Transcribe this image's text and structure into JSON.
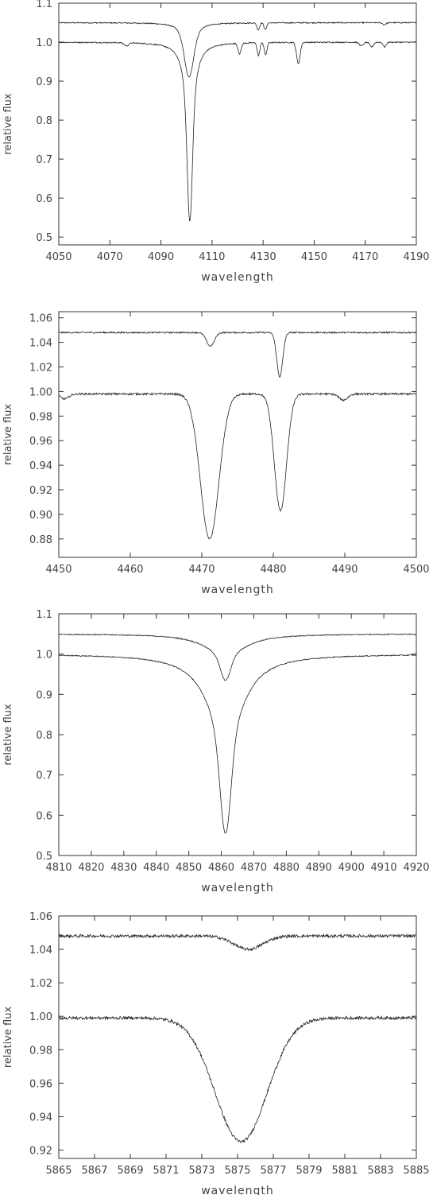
{
  "chart_data": [
    {
      "type": "line",
      "xlabel": "wavelength",
      "ylabel": "relative flux",
      "xlim": [
        4050,
        4190
      ],
      "ylim": [
        0.48,
        1.1
      ],
      "xticks": [
        4050,
        4070,
        4090,
        4110,
        4130,
        4150,
        4170,
        4190
      ],
      "yticks": [
        0.5,
        0.6,
        0.7,
        0.8,
        0.9,
        1.0,
        1.1
      ],
      "ytick_labels": [
        "0.5",
        "0.6",
        "0.7",
        "0.8",
        "0.9",
        "1.0",
        "1.1"
      ],
      "grid": false,
      "series": [
        {
          "continuum": 1.05,
          "noise": 0.0015,
          "lines": [
            {
              "center": 4101,
              "depth": 0.14,
              "gwidth": 1.8,
              "lwidth": 2.6
            },
            {
              "center": 4128.1,
              "depth": 0.018,
              "gwidth": 0.5,
              "lwidth": 0
            },
            {
              "center": 4130.9,
              "depth": 0.018,
              "gwidth": 0.5,
              "lwidth": 0
            },
            {
              "center": 4177.5,
              "depth": 0.005,
              "gwidth": 0.7,
              "lwidth": 0
            }
          ]
        },
        {
          "continuum": 1.0,
          "noise": 0.0015,
          "lines": [
            {
              "center": 4101.3,
              "depth": 0.46,
              "gwidth": 0.95,
              "lwidth": 2.2
            },
            {
              "center": 4076.5,
              "depth": 0.008,
              "gwidth": 0.8,
              "lwidth": 0
            },
            {
              "center": 4120.8,
              "depth": 0.027,
              "gwidth": 0.6,
              "lwidth": 0
            },
            {
              "center": 4128.2,
              "depth": 0.033,
              "gwidth": 0.5,
              "lwidth": 0
            },
            {
              "center": 4131.0,
              "depth": 0.032,
              "gwidth": 0.5,
              "lwidth": 0
            },
            {
              "center": 4143.8,
              "depth": 0.054,
              "gwidth": 0.7,
              "lwidth": 0
            },
            {
              "center": 4168.5,
              "depth": 0.009,
              "gwidth": 0.8,
              "lwidth": 0
            },
            {
              "center": 4172.5,
              "depth": 0.012,
              "gwidth": 0.7,
              "lwidth": 0
            },
            {
              "center": 4177.6,
              "depth": 0.012,
              "gwidth": 0.6,
              "lwidth": 0
            }
          ]
        }
      ]
    },
    {
      "type": "line",
      "xlabel": "wavelength",
      "ylabel": "relative flux",
      "xlim": [
        4450,
        4500
      ],
      "ylim": [
        0.865,
        1.065
      ],
      "xticks": [
        4450,
        4460,
        4470,
        4480,
        4490,
        4500
      ],
      "yticks": [
        0.88,
        0.9,
        0.92,
        0.94,
        0.96,
        0.98,
        1.0,
        1.02,
        1.04,
        1.06
      ],
      "ytick_labels": [
        "0.88",
        "0.90",
        "0.92",
        "0.94",
        "0.96",
        "0.98",
        "1.00",
        "1.02",
        "1.04",
        "1.06"
      ],
      "grid": false,
      "series": [
        {
          "continuum": 1.048,
          "noise": 0.0006,
          "lines": [
            {
              "center": 4471.2,
              "depth": 0.011,
              "gwidth": 0.55,
              "lwidth": 0
            },
            {
              "center": 4480.9,
              "depth": 0.036,
              "gwidth": 0.42,
              "lwidth": 0
            }
          ]
        },
        {
          "continuum": 0.998,
          "noise": 0.0008,
          "lines": [
            {
              "center": 4471.1,
              "depth": 0.118,
              "gwidth": 1.3,
              "lwidth": 0
            },
            {
              "center": 4481.0,
              "depth": 0.095,
              "gwidth": 0.85,
              "lwidth": 0
            },
            {
              "center": 4450.8,
              "depth": 0.004,
              "gwidth": 0.6,
              "lwidth": 0
            },
            {
              "center": 4489.8,
              "depth": 0.005,
              "gwidth": 0.6,
              "lwidth": 0
            }
          ]
        }
      ]
    },
    {
      "type": "line",
      "xlabel": "wavelength",
      "ylabel": "relative flux",
      "xlim": [
        4810,
        4920
      ],
      "ylim": [
        0.5,
        1.1
      ],
      "xticks": [
        4810,
        4820,
        4830,
        4840,
        4850,
        4860,
        4870,
        4880,
        4890,
        4900,
        4910,
        4920
      ],
      "yticks": [
        0.5,
        0.6,
        0.7,
        0.8,
        0.9,
        1.0,
        1.1
      ],
      "ytick_labels": [
        "0.5",
        "0.6",
        "0.7",
        "0.8",
        "0.9",
        "1.0",
        "1.1"
      ],
      "grid": false,
      "series": [
        {
          "continuum": 1.05,
          "noise": 0.0012,
          "lines": [
            {
              "center": 4861.3,
              "depth": 0.115,
              "gwidth": 1.5,
              "lwidth": 7.0
            }
          ]
        },
        {
          "continuum": 1.0,
          "noise": 0.0012,
          "lines": [
            {
              "center": 4861.3,
              "depth": 0.445,
              "gwidth": 1.6,
              "lwidth": 6.3
            }
          ]
        }
      ]
    },
    {
      "type": "line",
      "xlabel": "wavelength",
      "ylabel": "relative flux",
      "xlim": [
        5865,
        5885
      ],
      "ylim": [
        0.915,
        1.06
      ],
      "xticks": [
        5865,
        5867,
        5869,
        5871,
        5873,
        5875,
        5877,
        5879,
        5881,
        5883,
        5885
      ],
      "yticks": [
        0.92,
        0.94,
        0.96,
        0.98,
        1.0,
        1.02,
        1.04,
        1.06
      ],
      "ytick_labels": [
        "0.92",
        "0.94",
        "0.96",
        "0.98",
        "1.00",
        "1.02",
        "1.04",
        "1.06"
      ],
      "grid": false,
      "series": [
        {
          "continuum": 1.048,
          "noise": 0.0009,
          "lines": [
            {
              "center": 5875.6,
              "depth": 0.008,
              "gwidth": 0.8,
              "lwidth": 0
            }
          ]
        },
        {
          "continuum": 0.999,
          "noise": 0.0009,
          "lines": [
            {
              "center": 5875.2,
              "depth": 0.074,
              "gwidth": 1.45,
              "lwidth": 0
            }
          ]
        }
      ]
    }
  ]
}
